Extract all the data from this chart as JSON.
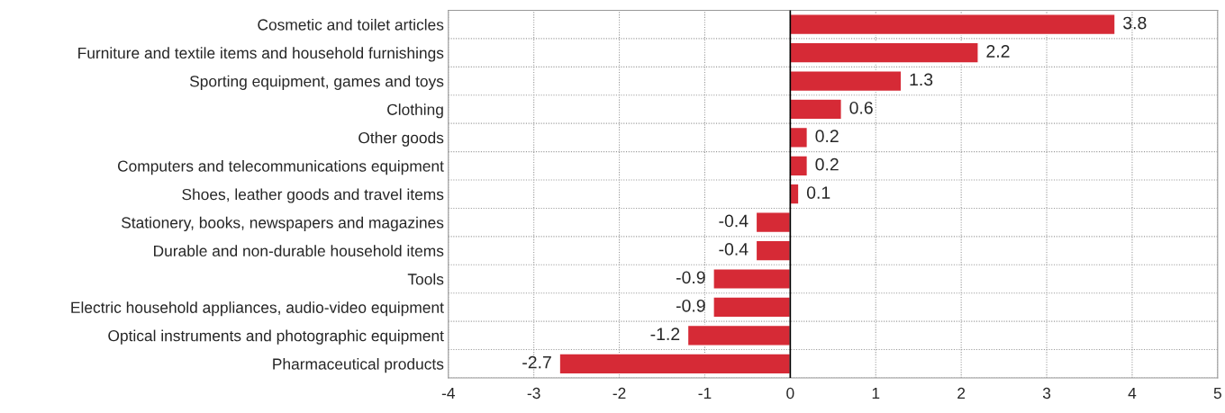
{
  "chart_data": {
    "type": "bar",
    "orientation": "horizontal",
    "categories": [
      "Cosmetic and toilet articles",
      "Furniture and textile items and household furnishings",
      "Sporting equipment, games and toys",
      "Clothing",
      "Other goods",
      "Computers and telecommunications equipment",
      "Shoes, leather goods and travel items",
      "Stationery, books, newspapers and magazines",
      "Durable and non-durable household items",
      "Tools",
      "Electric household appliances, audio-video equipment",
      "Optical instruments and photographic equipment",
      "Pharmaceutical products"
    ],
    "values": [
      3.8,
      2.2,
      1.3,
      0.6,
      0.2,
      0.2,
      0.1,
      -0.4,
      -0.4,
      -0.9,
      -0.9,
      -1.2,
      -2.7
    ],
    "color": "#d62a36",
    "xlim": [
      -4,
      5
    ],
    "xticks": [
      -4,
      -3,
      -2,
      -1,
      0,
      1,
      2,
      3,
      4,
      5
    ],
    "grid": true,
    "data_labels": true,
    "ref_lines": [
      {
        "axis": "x",
        "value": 0,
        "color": "#000000",
        "line_style": "solid"
      }
    ]
  }
}
